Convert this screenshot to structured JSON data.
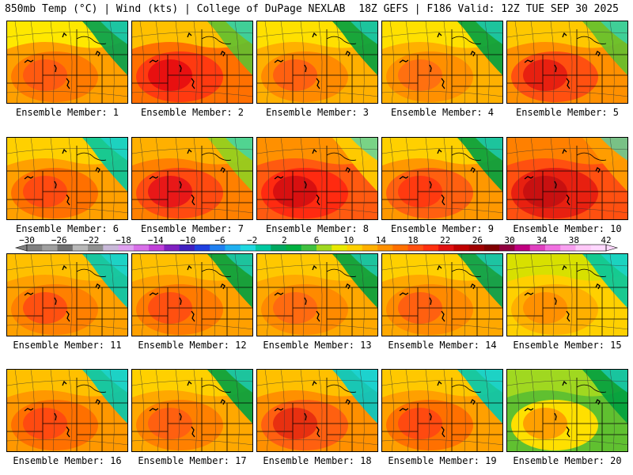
{
  "header": {
    "left": "850mb Temp (°C) | Wind (kts) | College of DuPage NEXLAB",
    "right": "18Z GEFS | F186 Valid: 12Z TUE SEP 30 2025"
  },
  "panels": [
    {
      "caption": "Ensemble Member: 1",
      "palette": [
        "#ffe800",
        "#ffa000",
        "#ff7a00",
        "#ff5a10"
      ],
      "ne": "#00a050"
    },
    {
      "caption": "Ensemble Member: 2",
      "palette": [
        "#ffc000",
        "#ff7000",
        "#ff3a10",
        "#e81010"
      ],
      "ne": "#60c030"
    },
    {
      "caption": "Ensemble Member: 3",
      "palette": [
        "#ffe000",
        "#ffb000",
        "#ff8a00",
        "#ff6010"
      ],
      "ne": "#00a040"
    },
    {
      "caption": "Ensemble Member: 4",
      "palette": [
        "#ffe000",
        "#ffb000",
        "#ff9000",
        "#ff7010"
      ],
      "ne": "#00a040"
    },
    {
      "caption": "Ensemble Member: 5",
      "palette": [
        "#ffc800",
        "#ff9000",
        "#ff5010",
        "#e82010"
      ],
      "ne": "#60c030"
    },
    {
      "caption": "Ensemble Member: 6",
      "palette": [
        "#ffd000",
        "#ffa000",
        "#ff7000",
        "#ff4a10"
      ],
      "ne": "#00c8a0"
    },
    {
      "caption": "Ensemble Member: 7",
      "palette": [
        "#ffb000",
        "#ff8000",
        "#ff4a10",
        "#e81818"
      ],
      "ne": "#90d020"
    },
    {
      "caption": "Ensemble Member: 8",
      "palette": [
        "#ff9000",
        "#ff5a10",
        "#ff2a10",
        "#d81010"
      ],
      "ne": "#ffd000"
    },
    {
      "caption": "Ensemble Member: 9",
      "palette": [
        "#ffd000",
        "#ff9800",
        "#ff6010",
        "#ff3a10"
      ],
      "ne": "#00a040"
    },
    {
      "caption": "Ensemble Member: 10",
      "palette": [
        "#ff8000",
        "#ff5010",
        "#e82010",
        "#c81010"
      ],
      "ne": "#ffa000"
    },
    {
      "caption": "Ensemble Member: 11",
      "palette": [
        "#ffc000",
        "#ffa000",
        "#ff8000",
        "#ff5010"
      ],
      "ne": "#00c8b0"
    },
    {
      "caption": "Ensemble Member: 12",
      "palette": [
        "#ffc000",
        "#ffa000",
        "#ff7a00",
        "#ff5010"
      ],
      "ne": "#00a040"
    },
    {
      "caption": "Ensemble Member: 13",
      "palette": [
        "#ffc800",
        "#ffa800",
        "#ff8a00",
        "#ff6a10"
      ],
      "ne": "#00a040"
    },
    {
      "caption": "Ensemble Member: 14",
      "palette": [
        "#ffd000",
        "#ffa800",
        "#ff8a00",
        "#ff6010"
      ],
      "ne": "#00a050"
    },
    {
      "caption": "Ensemble Member: 15",
      "palette": [
        "#d8e000",
        "#ffd000",
        "#ffb000",
        "#ff9000"
      ],
      "ne": "#00c8a0"
    },
    {
      "caption": "Ensemble Member: 16",
      "palette": [
        "#ffc000",
        "#ff9800",
        "#ff7000",
        "#ff4a10"
      ],
      "ne": "#00c8b0"
    },
    {
      "caption": "Ensemble Member: 17",
      "palette": [
        "#ffd000",
        "#ffa800",
        "#ff8000",
        "#ff6010"
      ],
      "ne": "#00a040"
    },
    {
      "caption": "Ensemble Member: 18",
      "palette": [
        "#ffc000",
        "#ff9000",
        "#ff6010",
        "#e83010"
      ],
      "ne": "#00c8c8"
    },
    {
      "caption": "Ensemble Member: 19",
      "palette": [
        "#ffc800",
        "#ffa000",
        "#ff7000",
        "#ff4a10"
      ],
      "ne": "#00c8b0"
    },
    {
      "caption": "Ensemble Member: 20",
      "palette": [
        "#a0d820",
        "#60c030",
        "#ffe000",
        "#ffa000"
      ],
      "ne": "#00a040"
    }
  ],
  "colorbar": {
    "labels": [
      "−30",
      "−26",
      "−22",
      "−18",
      "−14",
      "−10",
      "−6",
      "−2",
      "2",
      "6",
      "10",
      "14",
      "18",
      "22",
      "26",
      "30",
      "34",
      "38",
      "42"
    ],
    "colors": [
      "#808080",
      "#a0a0a0",
      "#707070",
      "#b8b8b8",
      "#909090",
      "#c8b8d8",
      "#e0a0f0",
      "#d870e8",
      "#c040d8",
      "#8020c0",
      "#4020c0",
      "#2040e0",
      "#2080f0",
      "#20b0f0",
      "#20d8e0",
      "#00c8a0",
      "#00a860",
      "#00b040",
      "#40c040",
      "#a0d820",
      "#e8e800",
      "#ffd000",
      "#ffb000",
      "#ff9000",
      "#ff7000",
      "#ff5010",
      "#ff3010",
      "#e01010",
      "#c00000",
      "#a00000",
      "#800000",
      "#900040",
      "#c00080",
      "#e040c0",
      "#f070e0",
      "#f8a0f0",
      "#ffc8f8",
      "#ffd8ff"
    ]
  }
}
